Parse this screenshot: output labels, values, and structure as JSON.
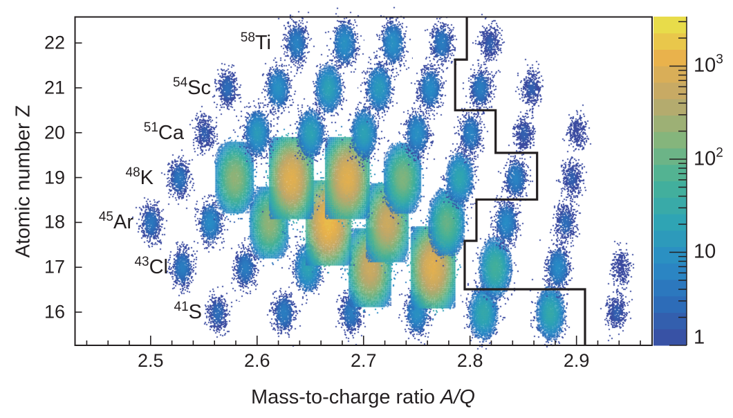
{
  "chart_data": {
    "type": "heatmap",
    "xlabel": "Mass-to-charge ratio",
    "xlabel_italic": "A/Q",
    "ylabel": "Atomic number Z",
    "xlim": [
      2.429,
      2.971
    ],
    "ylim": [
      15.26,
      22.58
    ],
    "xticks": [
      "2.5",
      "2.6",
      "2.7",
      "2.8",
      "2.9"
    ],
    "yticks": [
      "16",
      "17",
      "18",
      "19",
      "20",
      "21",
      "22"
    ],
    "colorbar": {
      "scale": "log",
      "range": [
        1,
        3400
      ],
      "ticks": [
        {
          "base": "1",
          "exp": ""
        },
        {
          "base": "10",
          "exp": ""
        },
        {
          "base": "10",
          "exp": "2"
        },
        {
          "base": "10",
          "exp": "3"
        }
      ]
    },
    "colors": [
      "#3b4ba0",
      "#2d6cb8",
      "#2a8bc6",
      "#2fa4b4",
      "#47b297",
      "#85b57c",
      "#c0a86a",
      "#e9b24c",
      "#e8e64a"
    ],
    "isotope_labels": [
      {
        "mass": "58",
        "element": "Ti",
        "z": 22
      },
      {
        "mass": "54",
        "element": "Sc",
        "z": 21
      },
      {
        "mass": "51",
        "element": "Ca",
        "z": 20
      },
      {
        "mass": "48",
        "element": "K",
        "z": 19
      },
      {
        "mass": "45",
        "element": "Ar",
        "z": 18
      },
      {
        "mass": "43",
        "element": "Cl",
        "z": 17
      },
      {
        "mass": "41",
        "element": "S",
        "z": 16
      }
    ],
    "clusters": [
      {
        "z": 16,
        "a": 41,
        "peak": 3
      },
      {
        "z": 16,
        "a": 42,
        "peak": 5
      },
      {
        "z": 16,
        "a": 43,
        "peak": 5
      },
      {
        "z": 16,
        "a": 44,
        "peak": 10
      },
      {
        "z": 16,
        "a": 45,
        "peak": 30
      },
      {
        "z": 16,
        "a": 46,
        "peak": 30
      },
      {
        "z": 16,
        "a": 47,
        "peak": 2
      },
      {
        "z": 17,
        "a": 43,
        "peak": 5
      },
      {
        "z": 17,
        "a": 44,
        "peak": 5
      },
      {
        "z": 17,
        "a": 45,
        "peak": 20
      },
      {
        "z": 17,
        "a": 46,
        "peak": 600
      },
      {
        "z": 17,
        "a": 47,
        "peak": 1000
      },
      {
        "z": 17,
        "a": 48,
        "peak": 50
      },
      {
        "z": 17,
        "a": 49,
        "peak": 8
      },
      {
        "z": 17,
        "a": 50,
        "peak": 1
      },
      {
        "z": 18,
        "a": 45,
        "peak": 4
      },
      {
        "z": 18,
        "a": 46,
        "peak": 8
      },
      {
        "z": 18,
        "a": 47,
        "peak": 200
      },
      {
        "z": 18,
        "a": 48,
        "peak": 1500
      },
      {
        "z": 18,
        "a": 49,
        "peak": 600
      },
      {
        "z": 18,
        "a": 50,
        "peak": 100
      },
      {
        "z": 18,
        "a": 51,
        "peak": 8
      },
      {
        "z": 18,
        "a": 52,
        "peak": 3
      },
      {
        "z": 19,
        "a": 48,
        "peak": 4
      },
      {
        "z": 19,
        "a": 49,
        "peak": 200
      },
      {
        "z": 19,
        "a": 50,
        "peak": 1000
      },
      {
        "z": 19,
        "a": 51,
        "peak": 1000
      },
      {
        "z": 19,
        "a": 52,
        "peak": 150
      },
      {
        "z": 19,
        "a": 53,
        "peak": 25
      },
      {
        "z": 19,
        "a": 54,
        "peak": 6
      },
      {
        "z": 19,
        "a": 55,
        "peak": 2
      },
      {
        "z": 20,
        "a": 51,
        "peak": 2
      },
      {
        "z": 20,
        "a": 52,
        "peak": 15
      },
      {
        "z": 20,
        "a": 53,
        "peak": 20
      },
      {
        "z": 20,
        "a": 54,
        "peak": 20
      },
      {
        "z": 20,
        "a": 55,
        "peak": 10
      },
      {
        "z": 20,
        "a": 56,
        "peak": 6
      },
      {
        "z": 20,
        "a": 57,
        "peak": 2
      },
      {
        "z": 20,
        "a": 58,
        "peak": 1
      },
      {
        "z": 21,
        "a": 54,
        "peak": 3
      },
      {
        "z": 21,
        "a": 55,
        "peak": 10
      },
      {
        "z": 21,
        "a": 56,
        "peak": 20
      },
      {
        "z": 21,
        "a": 57,
        "peak": 15
      },
      {
        "z": 21,
        "a": 58,
        "peak": 8
      },
      {
        "z": 21,
        "a": 59,
        "peak": 5
      },
      {
        "z": 21,
        "a": 60,
        "peak": 2
      },
      {
        "z": 22,
        "a": 58,
        "peak": 6
      },
      {
        "z": 22,
        "a": 59,
        "peak": 10
      },
      {
        "z": 22,
        "a": 60,
        "peak": 10
      },
      {
        "z": 22,
        "a": 61,
        "peak": 5
      },
      {
        "z": 22,
        "a": 62,
        "peak": 2
      }
    ],
    "boundary_line": [
      [
        2.797,
        22.58
      ],
      [
        2.797,
        21.63
      ],
      [
        2.786,
        21.63
      ],
      [
        2.786,
        20.5
      ],
      [
        2.824,
        20.5
      ],
      [
        2.824,
        19.55
      ],
      [
        2.863,
        19.55
      ],
      [
        2.863,
        18.51
      ],
      [
        2.806,
        18.51
      ],
      [
        2.806,
        17.59
      ],
      [
        2.795,
        17.59
      ],
      [
        2.795,
        16.51
      ],
      [
        2.908,
        16.51
      ],
      [
        2.908,
        15.26
      ]
    ]
  }
}
